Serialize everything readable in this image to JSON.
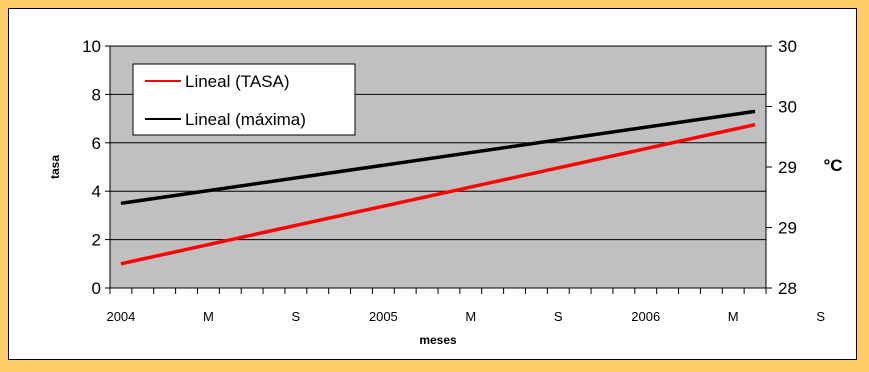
{
  "chart_data": {
    "type": "line",
    "xlabel": "meses",
    "ylabel": "tasa",
    "y2label": "°C",
    "x_tick_labels": [
      "2004",
      "M",
      "S",
      "2005",
      "M",
      "S",
      "2006",
      "M",
      "S"
    ],
    "y_ticks": [
      "0",
      "2",
      "4",
      "6",
      "8",
      "10"
    ],
    "y2_ticks": [
      "28",
      "29",
      "29",
      "30",
      "30"
    ],
    "ylim": [
      0,
      10
    ],
    "y2lim": [
      28,
      30.5
    ],
    "grid": true,
    "legend_position": "top-left",
    "n_months": 30,
    "series": [
      {
        "name": "Lineal (TASA)",
        "axis": "left",
        "color": "#ff0000",
        "values": [
          1.0,
          6.75
        ]
      },
      {
        "name": "Lineal (máxima)",
        "axis": "left",
        "color": "#000000",
        "values": [
          3.5,
          7.3
        ]
      }
    ],
    "plot_background": "#c0c0c0",
    "page_background": "#ffcc66"
  }
}
